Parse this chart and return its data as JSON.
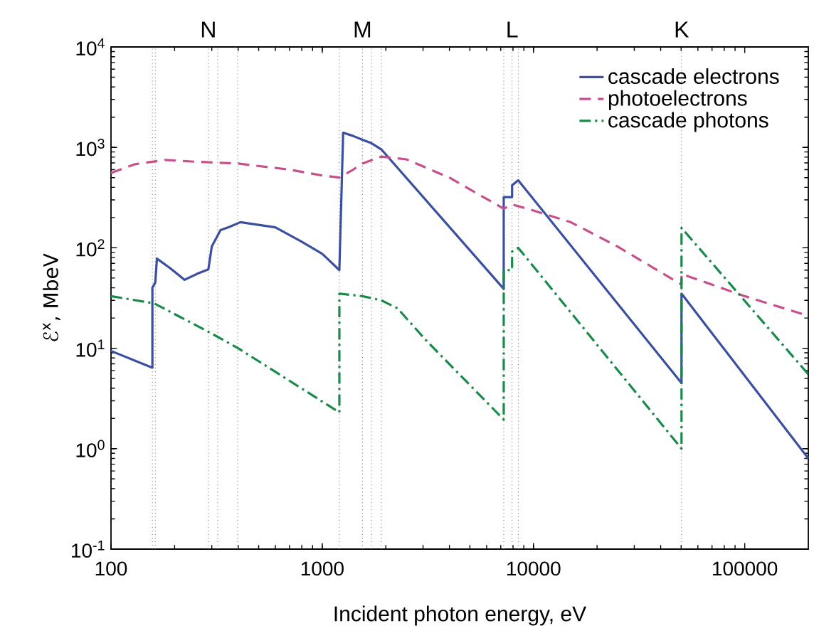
{
  "chart_data": {
    "type": "line",
    "log": "xy",
    "xlabel": "Incident photon energy, eV",
    "ylabel": "ℰ$^{x}$, MbeV",
    "xlim": [
      100,
      200000
    ],
    "ylim": [
      0.1,
      10000
    ],
    "xticks": [
      100,
      1000,
      10000,
      100000
    ],
    "yticks": [
      {
        "value": 0.1,
        "label": "10$^{-1}$"
      },
      {
        "value": 1,
        "label": "10$^{0}$"
      },
      {
        "value": 10,
        "label": "10$^{1}$"
      },
      {
        "value": 100,
        "label": "10$^{2}$"
      },
      {
        "value": 1000,
        "label": "10$^{3}$"
      },
      {
        "value": 10000,
        "label": "10$^{4}$"
      }
    ],
    "legend": "top right",
    "series": [
      {
        "name": "cascade electrons",
        "color": "#3a4f9f",
        "line_style": "solid",
        "x": [
          100,
          157,
          157,
          162,
          165,
          190,
          223,
          260,
          289,
          300,
          330,
          360,
          410,
          600,
          800,
          1000,
          1205,
          1256,
          1400,
          1550,
          1710,
          1905,
          7230,
          7230,
          7920,
          7920,
          8470,
          50200,
          50200,
          200000
        ],
        "values": [
          9.4,
          6.4,
          40,
          45,
          78,
          63,
          48,
          56,
          61,
          103,
          150,
          160,
          180,
          160,
          115,
          87,
          60,
          1400,
          1300,
          1190,
          1100,
          955,
          39,
          320,
          320,
          420,
          470,
          4.5,
          35,
          0.8
        ]
      },
      {
        "name": "photoelectrons",
        "color": "#c8508a",
        "line_style": "dashed",
        "x": [
          100,
          130,
          180,
          250,
          400,
          700,
          1000,
          1205,
          1400,
          1550,
          1905,
          2500,
          4000,
          7230,
          7920,
          10000,
          15000,
          25000,
          50200,
          50200,
          100000,
          200000
        ],
        "values": [
          555,
          680,
          750,
          720,
          690,
          600,
          525,
          500,
          600,
          690,
          810,
          760,
          500,
          245,
          270,
          235,
          180,
          103,
          43,
          55,
          33,
          21
        ]
      },
      {
        "name": "cascade photons",
        "color": "#1a8a4a",
        "line_style": "dashdot",
        "x": [
          100,
          160,
          289,
          400,
          1205,
          1205,
          1550,
          1905,
          2270,
          3100,
          7230,
          7230,
          7920,
          7920,
          8470,
          50200,
          50200,
          200000
        ],
        "values": [
          33,
          28,
          14.6,
          10,
          2.3,
          35,
          33,
          30,
          25,
          12,
          1.95,
          60,
          60,
          92,
          100,
          1.0,
          158,
          5.5
        ]
      }
    ],
    "ref_lines": [
      {
        "axis": "x",
        "value": 157,
        "color": "#606060",
        "line_style": "dotted"
      },
      {
        "axis": "x",
        "value": 162,
        "color": "#606060",
        "line_style": "dotted"
      },
      {
        "axis": "x",
        "value": 289,
        "color": "#606060",
        "line_style": "dotted",
        "label": "N"
      },
      {
        "axis": "x",
        "value": 320,
        "color": "#606060",
        "line_style": "dotted"
      },
      {
        "axis": "x",
        "value": 398,
        "color": "#606060",
        "line_style": "dotted"
      },
      {
        "axis": "x",
        "value": 1205,
        "color": "#606060",
        "line_style": "dotted"
      },
      {
        "axis": "x",
        "value": 1550,
        "color": "#606060",
        "line_style": "dotted",
        "label": "M"
      },
      {
        "axis": "x",
        "value": 1710,
        "color": "#606060",
        "line_style": "dotted"
      },
      {
        "axis": "x",
        "value": 1905,
        "color": "#606060",
        "line_style": "dotted"
      },
      {
        "axis": "x",
        "value": 7230,
        "color": "#606060",
        "line_style": "dotted"
      },
      {
        "axis": "x",
        "value": 7920,
        "color": "#606060",
        "line_style": "dotted",
        "label": "L"
      },
      {
        "axis": "x",
        "value": 8470,
        "color": "#606060",
        "line_style": "dotted"
      },
      {
        "axis": "x",
        "value": 50200,
        "color": "#606060",
        "line_style": "dotted",
        "label": "K"
      }
    ]
  }
}
